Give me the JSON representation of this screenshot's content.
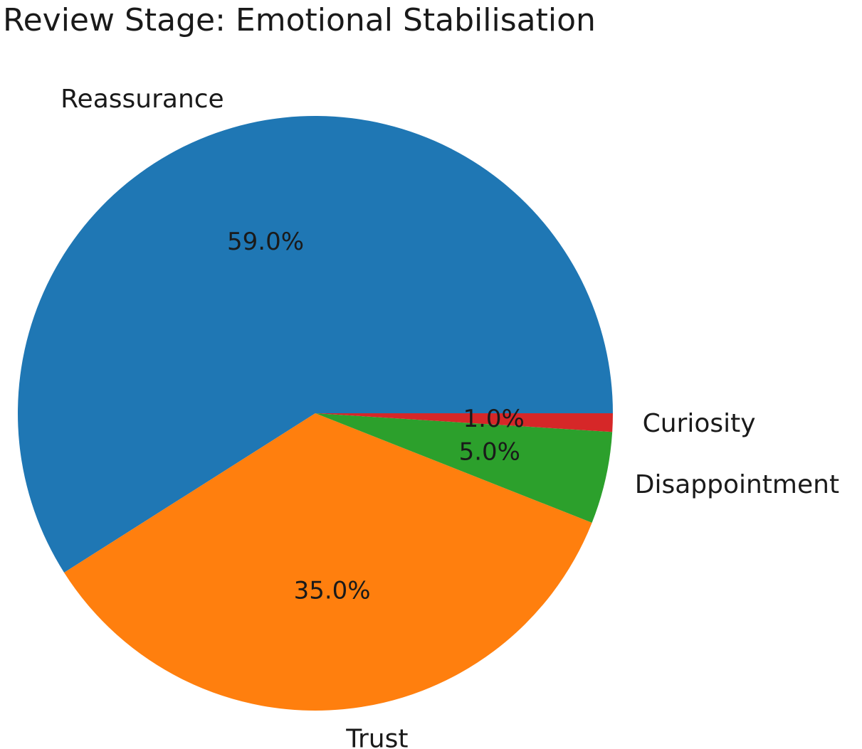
{
  "chart_data": {
    "type": "pie",
    "title": "Review Stage: Emotional Stabilisation",
    "slices": [
      {
        "label": "Reassurance",
        "value": 59.0,
        "pct_label": "59.0%",
        "color": "#1f77b4"
      },
      {
        "label": "Trust",
        "value": 35.0,
        "pct_label": "35.0%",
        "color": "#ff7f0e"
      },
      {
        "label": "Disappointment",
        "value": 5.0,
        "pct_label": "5.0%",
        "color": "#2ca02c"
      },
      {
        "label": "Curiosity",
        "value": 1.0,
        "pct_label": "1.0%",
        "color": "#d62728"
      }
    ],
    "start_angle_deg": 0,
    "direction": "counterclockwise"
  }
}
